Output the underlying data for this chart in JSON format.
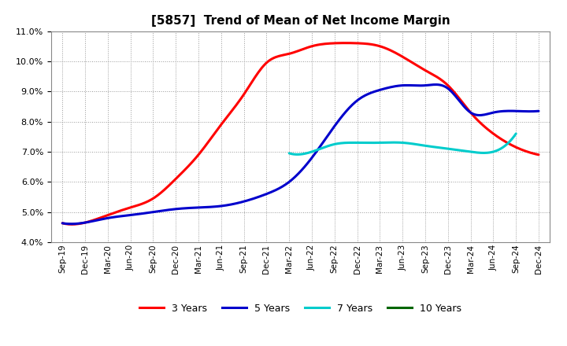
{
  "title": "[5857]  Trend of Mean of Net Income Margin",
  "ylim": [
    0.04,
    0.11
  ],
  "yticks": [
    0.04,
    0.05,
    0.06,
    0.07,
    0.08,
    0.09,
    0.1,
    0.11
  ],
  "x_labels": [
    "Sep-19",
    "Dec-19",
    "Mar-20",
    "Jun-20",
    "Sep-20",
    "Dec-20",
    "Mar-21",
    "Jun-21",
    "Sep-21",
    "Dec-21",
    "Mar-22",
    "Jun-22",
    "Sep-22",
    "Dec-22",
    "Mar-23",
    "Jun-23",
    "Sep-23",
    "Dec-23",
    "Mar-24",
    "Jun-24",
    "Sep-24",
    "Dec-24"
  ],
  "series": {
    "3 Years": {
      "color": "#ff0000",
      "data": [
        0.0463,
        0.0465,
        0.049,
        0.0515,
        0.0545,
        0.061,
        0.069,
        0.079,
        0.089,
        0.0995,
        0.1025,
        0.105,
        0.106,
        0.106,
        0.105,
        0.1015,
        0.097,
        0.092,
        0.083,
        0.076,
        0.0715,
        0.069
      ]
    },
    "5 Years": {
      "color": "#0000cc",
      "data": [
        0.0463,
        0.0465,
        0.048,
        0.049,
        0.05,
        0.051,
        0.0515,
        0.052,
        0.0535,
        0.056,
        0.06,
        0.068,
        0.0785,
        0.087,
        0.0905,
        0.092,
        0.092,
        0.091,
        0.083,
        0.083,
        0.0835,
        0.0835
      ]
    },
    "7 Years": {
      "color": "#00cccc",
      "data": [
        null,
        null,
        null,
        null,
        null,
        null,
        null,
        null,
        null,
        null,
        0.0695,
        0.07,
        0.0725,
        0.073,
        0.073,
        0.073,
        0.072,
        0.071,
        0.07,
        0.07,
        0.076,
        null
      ]
    },
    "10 Years": {
      "color": "#006600",
      "data": [
        null,
        null,
        null,
        null,
        null,
        null,
        null,
        null,
        null,
        null,
        null,
        null,
        null,
        null,
        null,
        null,
        null,
        null,
        null,
        null,
        null,
        null
      ]
    }
  },
  "legend_order": [
    "3 Years",
    "5 Years",
    "7 Years",
    "10 Years"
  ],
  "background_color": "#ffffff",
  "grid_color": "#999999"
}
